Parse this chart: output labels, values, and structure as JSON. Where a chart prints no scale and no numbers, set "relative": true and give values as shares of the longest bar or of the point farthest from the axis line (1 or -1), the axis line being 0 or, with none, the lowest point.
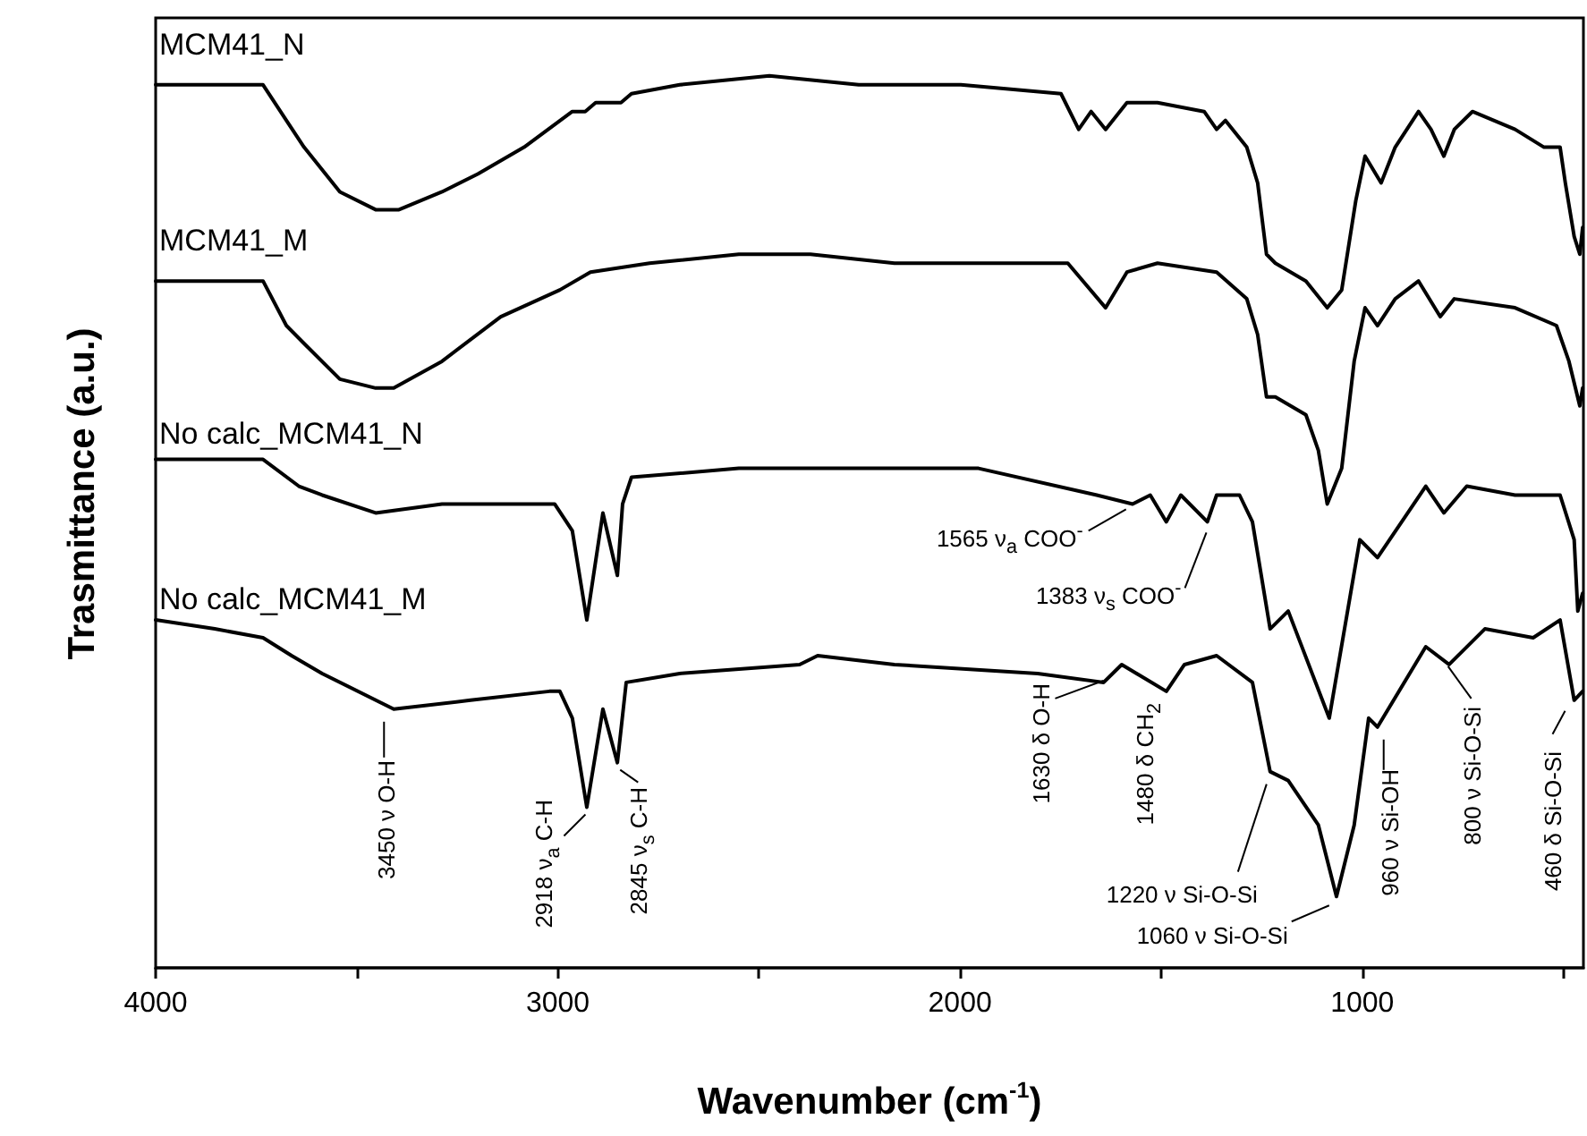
{
  "chart_data": {
    "type": "line",
    "xlabel": "Wavenumber (cm$^{-1}$)",
    "ylabel": "Trasmittance (a.u.)",
    "relative": true,
    "tick_labels": "x",
    "xlim": [
      4000,
      450
    ],
    "xticks": [
      4000,
      {
        "value": 3500,
        "label": null
      },
      3000,
      {
        "value": 2500,
        "label": null
      },
      2000,
      {
        "value": 1500,
        "label": null
      },
      1000,
      {
        "value": 500,
        "label": null
      }
    ],
    "series": [
      {
        "name": "MCM41_N",
        "color": "#000000",
        "x": [
          4000,
          3733,
          3675,
          3631,
          3542,
          3453,
          3395,
          3288,
          3199,
          3084,
          2964,
          2932,
          2906,
          2843,
          2817,
          2697,
          2474,
          2252,
          1998,
          1749,
          1705,
          1674,
          1638,
          1585,
          1509,
          1393,
          1362,
          1340,
          1287,
          1260,
          1238,
          1216,
          1140,
          1087,
          1051,
          1016,
          993,
          953,
          918,
          860,
          829,
          797,
          771,
          726,
          620,
          548,
          508,
          495,
          473,
          459,
          452
        ],
        "values": [
          0.99,
          0.99,
          0.95,
          0.92,
          0.87,
          0.85,
          0.85,
          0.87,
          0.89,
          0.92,
          0.96,
          0.96,
          0.97,
          0.97,
          0.98,
          0.99,
          1.0,
          0.99,
          0.99,
          0.98,
          0.94,
          0.96,
          0.94,
          0.97,
          0.97,
          0.96,
          0.94,
          0.95,
          0.92,
          0.88,
          0.8,
          0.79,
          0.77,
          0.74,
          0.76,
          0.86,
          0.91,
          0.88,
          0.92,
          0.96,
          0.94,
          0.91,
          0.94,
          0.96,
          0.94,
          0.92,
          0.92,
          0.88,
          0.82,
          0.8,
          0.83
        ]
      },
      {
        "name": "MCM41_M",
        "color": "#000000",
        "x": [
          4000,
          3733,
          3675,
          3631,
          3542,
          3453,
          3408,
          3288,
          3142,
          2995,
          2919,
          2772,
          2550,
          2372,
          2163,
          1807,
          1732,
          1638,
          1585,
          1509,
          1362,
          1287,
          1260,
          1238,
          1216,
          1140,
          1109,
          1087,
          1051,
          1020,
          993,
          962,
          918,
          860,
          806,
          771,
          620,
          517,
          486,
          459,
          452
        ],
        "values": [
          0.77,
          0.77,
          0.72,
          0.7,
          0.66,
          0.65,
          0.65,
          0.68,
          0.73,
          0.76,
          0.78,
          0.79,
          0.8,
          0.8,
          0.79,
          0.79,
          0.79,
          0.74,
          0.78,
          0.79,
          0.78,
          0.75,
          0.71,
          0.64,
          0.64,
          0.62,
          0.58,
          0.52,
          0.56,
          0.68,
          0.74,
          0.72,
          0.75,
          0.77,
          0.73,
          0.75,
          0.74,
          0.72,
          0.68,
          0.63,
          0.65
        ]
      },
      {
        "name": "No calc_MCM41_N",
        "color": "#000000",
        "x": [
          4000,
          3733,
          3644,
          3586,
          3453,
          3288,
          3008,
          2964,
          2928,
          2888,
          2852,
          2839,
          2817,
          2550,
          2163,
          1954,
          1660,
          1571,
          1527,
          1487,
          1451,
          1385,
          1362,
          1305,
          1273,
          1229,
          1184,
          1082,
          1006,
          962,
          842,
          797,
          740,
          620,
          508,
          473,
          464,
          452
        ],
        "values": [
          0.57,
          0.57,
          0.54,
          0.53,
          0.51,
          0.52,
          0.52,
          0.49,
          0.39,
          0.51,
          0.44,
          0.52,
          0.55,
          0.56,
          0.56,
          0.56,
          0.53,
          0.52,
          0.53,
          0.5,
          0.53,
          0.5,
          0.53,
          0.53,
          0.5,
          0.38,
          0.4,
          0.28,
          0.48,
          0.46,
          0.54,
          0.51,
          0.54,
          0.53,
          0.53,
          0.48,
          0.4,
          0.42
        ]
      },
      {
        "name": "No calc_MCM41_M",
        "color": "#000000",
        "x": [
          4000,
          3853,
          3733,
          3662,
          3586,
          3408,
          3217,
          3021,
          2995,
          2964,
          2928,
          2888,
          2852,
          2830,
          2697,
          2399,
          2354,
          2163,
          1807,
          1643,
          1598,
          1487,
          1442,
          1362,
          1273,
          1229,
          1184,
          1109,
          1064,
          1020,
          984,
          962,
          842,
          784,
          695,
          575,
          508,
          473,
          452
        ],
        "values": [
          0.39,
          0.38,
          0.37,
          0.35,
          0.33,
          0.29,
          0.3,
          0.31,
          0.31,
          0.28,
          0.18,
          0.29,
          0.23,
          0.32,
          0.33,
          0.34,
          0.35,
          0.34,
          0.33,
          0.32,
          0.34,
          0.31,
          0.34,
          0.35,
          0.32,
          0.22,
          0.21,
          0.16,
          0.08,
          0.16,
          0.28,
          0.27,
          0.36,
          0.34,
          0.38,
          0.37,
          0.39,
          0.3,
          0.31
        ]
      }
    ],
    "annotations": [
      {
        "text": "1565 ν$_{a}$ COO$^{-}$",
        "x": 1565,
        "y": 0.52
      },
      {
        "text": "1383 ν$_{s}$ COO$^{-}$",
        "x": 1383,
        "y": 0.5
      },
      {
        "text": "3450 ν O-H",
        "x": 3450,
        "y": 0.29
      },
      {
        "text": "2918 ν$_{a}$ C-H",
        "x": 2918,
        "y": 0.18
      },
      {
        "text": "2845 ν$_{s}$ C-H",
        "x": 2845,
        "y": 0.23
      },
      {
        "text": "1630 δ O-H",
        "x": 1630,
        "y": 0.32
      },
      {
        "text": "1480 δ CH$_{2}$",
        "x": 1480,
        "y": 0.31
      },
      {
        "text": "1220 ν Si-O-Si",
        "x": 1220,
        "y": 0.22
      },
      {
        "text": "1060 ν Si-O-Si",
        "x": 1060,
        "y": 0.08
      },
      {
        "text": "960 ν Si-OH",
        "x": 960,
        "y": 0.27
      },
      {
        "text": "800 ν Si-O-Si",
        "x": 800,
        "y": 0.34
      },
      {
        "text": "460 δ Si-O-Si",
        "x": 460,
        "y": 0.3
      }
    ]
  }
}
